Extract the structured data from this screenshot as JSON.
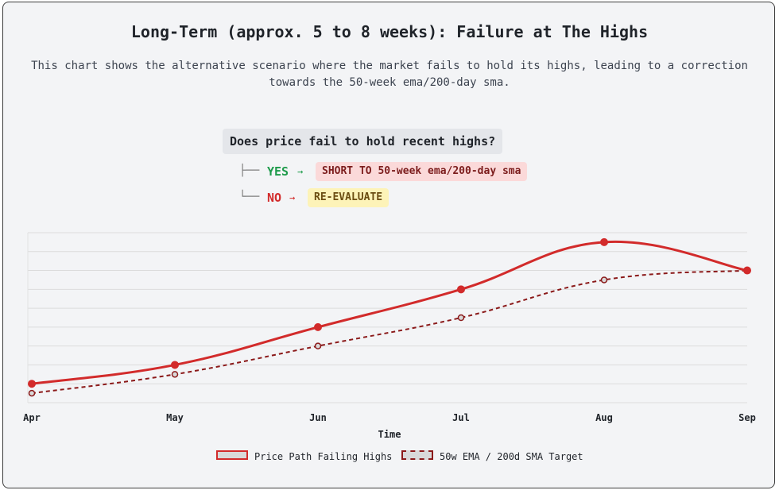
{
  "header": {
    "title": "Long-Term (approx. 5 to 8 weeks): Failure at The Highs",
    "subtitle": "This chart shows the alternative scenario where the market fails to hold its highs, leading to a correction towards the 50-week ema/200-day sma."
  },
  "decision_tree": {
    "question": "Does price fail to hold recent highs?",
    "yes_label": "YES",
    "yes_arrow": "→",
    "yes_action": "SHORT TO 50-week ema/200-day sma",
    "no_label": "NO",
    "no_arrow": "→",
    "no_action": "RE-EVALUATE",
    "yes_connector": "├──",
    "no_connector": "└──"
  },
  "chart_data": {
    "type": "line",
    "title": "Long-Term (approx. 5 to 8 weeks): Failure at The Highs",
    "xlabel": "Time",
    "ylabel": "",
    "categories": [
      "Apr",
      "May",
      "Jun",
      "Jul",
      "Aug",
      "Sep"
    ],
    "ylim": [
      0,
      9
    ],
    "grid": true,
    "y_tick_labels_visible": false,
    "legend_position": "bottom",
    "series": [
      {
        "name": "Price Path Failing Highs",
        "values": [
          1,
          2,
          4,
          6,
          8.5,
          7
        ],
        "color": "#d22b2b",
        "style": "solid"
      },
      {
        "name": "50w EMA / 200d SMA Target",
        "values": [
          0.5,
          1.5,
          3,
          4.5,
          6.5,
          7
        ],
        "color": "#8b1a1a",
        "style": "dashed"
      }
    ]
  },
  "colors": {
    "price": "#d22b2b",
    "ema": "#8b1a1a",
    "yes": "#1e9b4b",
    "no": "#d22b2b"
  }
}
